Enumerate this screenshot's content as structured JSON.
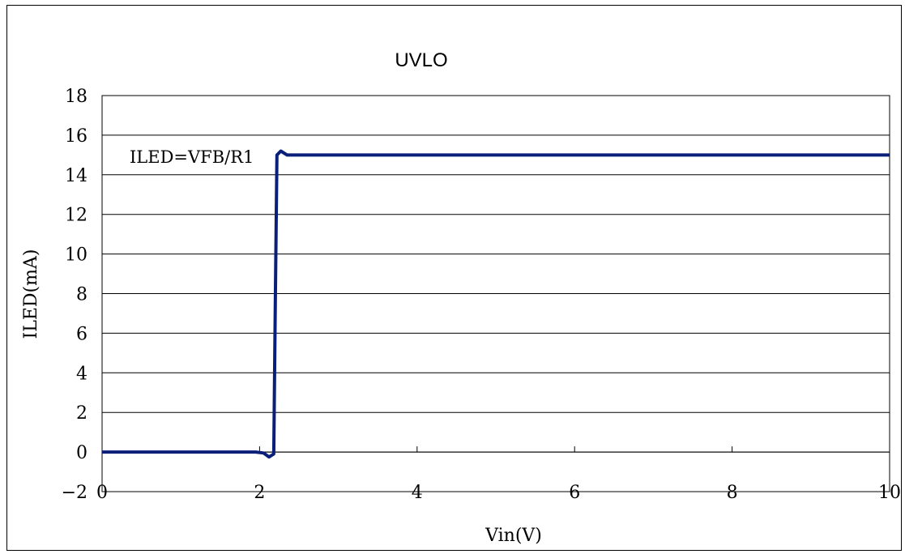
{
  "chart_data": {
    "type": "line",
    "title": "UVLO",
    "xlabel": "Vin(V)",
    "ylabel": "ILED(mA)",
    "xlim": [
      0,
      10
    ],
    "ylim": [
      -2,
      18
    ],
    "x_ticks": [
      "0",
      "2",
      "4",
      "6",
      "8",
      "10"
    ],
    "y_ticks": [
      "18",
      "16",
      "14",
      "12",
      "10",
      "8",
      "6",
      "4",
      "2",
      "0",
      "-2"
    ],
    "grid": "horizontal",
    "annotation": "ILED=VFB/R1",
    "series": [
      {
        "color": "#0a1f7a",
        "points": [
          [
            0,
            0
          ],
          [
            1.5,
            0
          ],
          [
            1.95,
            0
          ],
          [
            2.05,
            -0.05
          ],
          [
            2.12,
            -0.25
          ],
          [
            2.18,
            -0.1
          ],
          [
            2.2,
            7.5
          ],
          [
            2.22,
            15.0
          ],
          [
            2.27,
            15.2
          ],
          [
            2.35,
            15.0
          ],
          [
            4,
            15.0
          ],
          [
            6,
            15.0
          ],
          [
            8,
            15.0
          ],
          [
            10,
            15.0
          ]
        ]
      }
    ]
  }
}
